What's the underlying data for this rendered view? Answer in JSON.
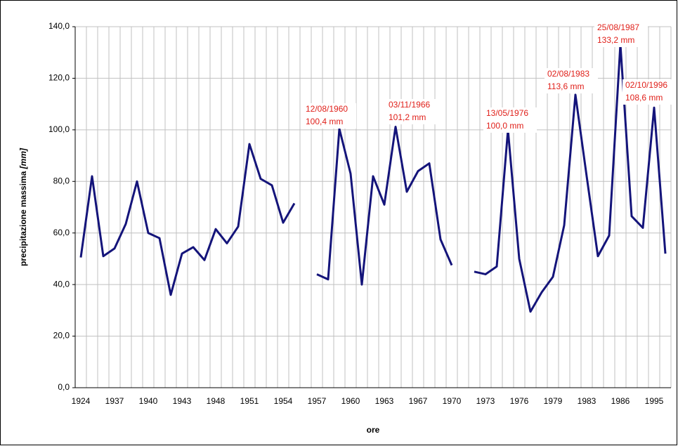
{
  "chart_data": {
    "type": "line",
    "y_label": "precipitazione massima",
    "y_label_unit": "[mm]",
    "x_label": "ore",
    "categories": [
      "1924",
      null,
      null,
      "1937",
      null,
      null,
      "1940",
      null,
      null,
      "1943",
      null,
      null,
      "1948",
      null,
      null,
      "1951",
      null,
      null,
      "1954",
      null,
      null,
      "1957",
      null,
      null,
      "1960",
      null,
      null,
      "1963",
      null,
      null,
      "1967",
      null,
      null,
      "1970",
      null,
      null,
      "1973",
      null,
      null,
      "1976",
      null,
      null,
      "1979",
      null,
      null,
      "1983",
      null,
      null,
      "1986",
      null,
      null,
      "1995",
      null
    ],
    "series": [
      {
        "name": "precipitazione massima",
        "color": "#14147a",
        "values": [
          50.5,
          82,
          51,
          54,
          63.5,
          80,
          60,
          58,
          36,
          52,
          54.5,
          49.5,
          61.5,
          56,
          62.5,
          94.5,
          81,
          78.5,
          64,
          71.5,
          null,
          44,
          42,
          100.4,
          83,
          40,
          82,
          71,
          101.2,
          76,
          84,
          87,
          57.5,
          47.5,
          null,
          45,
          44,
          47,
          100,
          50,
          29.5,
          37,
          43,
          63,
          113.6,
          82,
          51,
          59,
          133.2,
          66.5,
          62,
          108.6,
          52
        ]
      }
    ],
    "ylim": [
      0,
      140
    ],
    "yticks": [
      {
        "value": 0,
        "label": "0,0"
      },
      {
        "value": 20,
        "label": "20,0"
      },
      {
        "value": 40,
        "label": "40,0"
      },
      {
        "value": 60,
        "label": "60,0"
      },
      {
        "value": 80,
        "label": "80,0"
      },
      {
        "value": 100,
        "label": "100,0"
      },
      {
        "value": 120,
        "label": "120,0"
      },
      {
        "value": 140,
        "label": "140,0"
      }
    ],
    "grid": true,
    "annotations": [
      [
        "12/08/1960",
        "100,4 mm"
      ],
      [
        "03/11/1966",
        "101,2 mm"
      ],
      [
        "13/05/1976",
        "100,0 mm"
      ],
      [
        "02/08/1983",
        "113,6 mm"
      ],
      [
        "25/08/1987",
        "133,2 mm"
      ],
      [
        "02/10/1996",
        "108,6 mm"
      ]
    ]
  }
}
